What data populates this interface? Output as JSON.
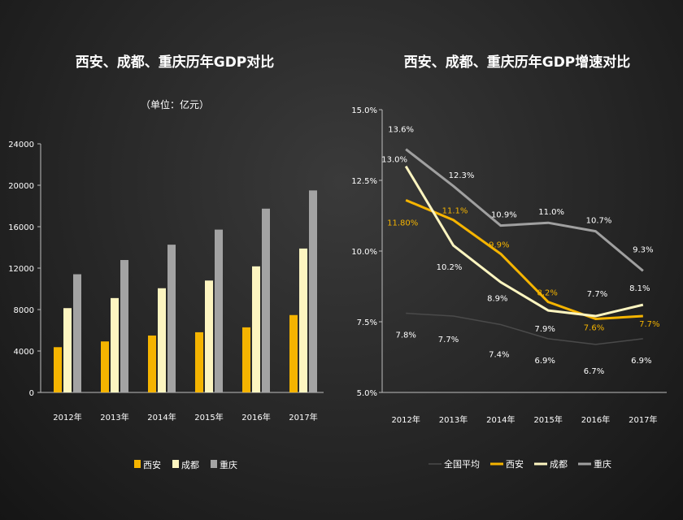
{
  "chart_data": [
    {
      "type": "bar",
      "title": "西安、成都、重庆历年GDP对比",
      "subtitle": "（单位：亿元）",
      "categories": [
        "2012年",
        "2013年",
        "2014年",
        "2015年",
        "2016年",
        "2017年"
      ],
      "ylim": [
        0,
        24000
      ],
      "yticks": [
        "0",
        "4000",
        "8000",
        "12000",
        "16000",
        "20000",
        "24000"
      ],
      "legend_position": "bottom",
      "series": [
        {
          "name": "西安",
          "color": "#f5b400",
          "values": [
            4370,
            4924,
            5493,
            5810,
            6282,
            7470
          ]
        },
        {
          "name": "成都",
          "color": "#fdf5c0",
          "values": [
            8139,
            9109,
            10057,
            10801,
            12170,
            13890
          ]
        },
        {
          "name": "重庆",
          "color": "#a3a3a3",
          "values": [
            11410,
            12783,
            14263,
            15717,
            17741,
            19500
          ]
        }
      ]
    },
    {
      "type": "line",
      "title": "西安、成都、重庆历年GDP增速对比",
      "categories": [
        "2012年",
        "2013年",
        "2014年",
        "2015年",
        "2016年",
        "2017年"
      ],
      "ylim": [
        5.0,
        15.0
      ],
      "yticks": [
        "5.0%",
        "7.5%",
        "10.0%",
        "12.5%",
        "15.0%"
      ],
      "legend_position": "bottom",
      "series": [
        {
          "name": "全国平均",
          "color": "#4a4a4a",
          "values": [
            7.8,
            7.7,
            7.4,
            6.9,
            6.7,
            6.9
          ],
          "labels": [
            "7.8%",
            "7.7%",
            "7.4%",
            "6.9%",
            "6.7%",
            "6.9%"
          ]
        },
        {
          "name": "西安",
          "color": "#f5b400",
          "values": [
            11.8,
            11.1,
            9.9,
            8.2,
            7.6,
            7.7
          ],
          "labels": [
            "11.80%",
            "11.1%",
            "9.9%",
            "8.2%",
            "7.6%",
            "7.7%"
          ]
        },
        {
          "name": "成都",
          "color": "#fdf5c0",
          "values": [
            13.0,
            10.2,
            8.9,
            7.9,
            7.7,
            8.1
          ],
          "labels": [
            "13.0%",
            "10.2%",
            "8.9%",
            "7.9%",
            "7.7%",
            "8.1%"
          ]
        },
        {
          "name": "重庆",
          "color": "#a0a0a0",
          "values": [
            13.6,
            12.3,
            10.9,
            11.0,
            10.7,
            9.3
          ],
          "labels": [
            "13.6%",
            "12.3%",
            "10.9%",
            "11.0%",
            "10.7%",
            "9.3%"
          ]
        }
      ]
    }
  ]
}
